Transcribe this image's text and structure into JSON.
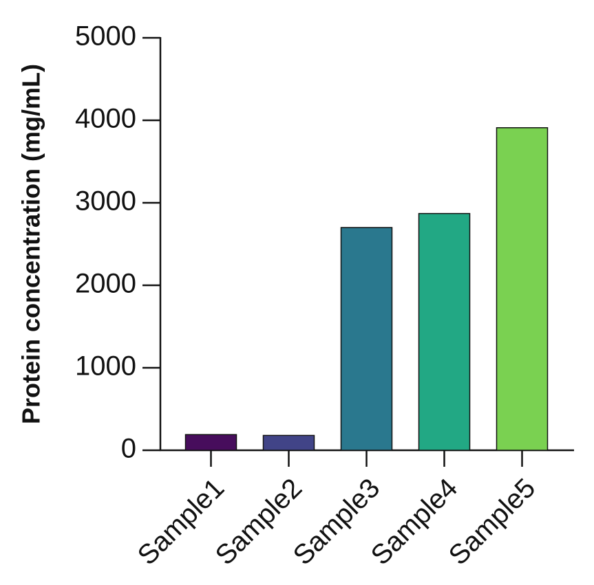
{
  "chart_data": {
    "type": "bar",
    "y_label": "Protein concentration (mg/mL)",
    "categories": [
      "Sample1",
      "Sample2",
      "Sample3",
      "Sample4",
      "Sample5"
    ],
    "values": [
      190,
      180,
      2700,
      2870,
      3910
    ],
    "colors": [
      "#470d5c",
      "#414487",
      "#2a788e",
      "#22a884",
      "#7ad151"
    ],
    "ylim": [
      0,
      5000
    ],
    "yticks": [
      0,
      1000,
      2000,
      3000,
      4000,
      5000
    ],
    "grid": false
  }
}
